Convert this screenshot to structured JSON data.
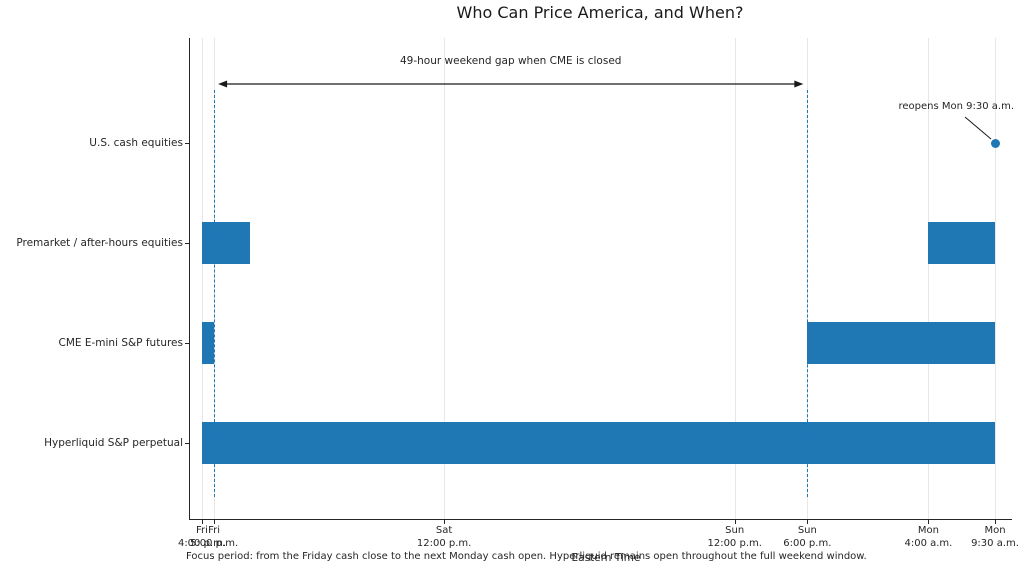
{
  "chart_data": {
    "type": "bar",
    "variant": "horizontal-interval-timeline",
    "title": "Who Can Price America, and When?",
    "xlabel": "Eastern Time",
    "caption": "Focus period: from the Friday cash close to the next Monday cash open. Hyperliquid remains open throughout the full weekend window.",
    "x_unit": "hours from Friday 4:00 p.m. ET",
    "x_range_hours": [
      0,
      65.5
    ],
    "grid": true,
    "x_ticks": [
      {
        "t": 0,
        "day": "Fri",
        "time": "4:00 p.m."
      },
      {
        "t": 1,
        "day": "Fri",
        "time": "5:00 p.m."
      },
      {
        "t": 20,
        "day": "Sat",
        "time": "12:00 p.m."
      },
      {
        "t": 44,
        "day": "Sun",
        "time": "12:00 p.m."
      },
      {
        "t": 50,
        "day": "Sun",
        "time": "6:00 p.m."
      },
      {
        "t": 60,
        "day": "Mon",
        "time": "4:00 a.m."
      },
      {
        "t": 65.5,
        "day": "Mon",
        "time": "9:30 a.m."
      }
    ],
    "rows": [
      {
        "label": "U.S. cash equities",
        "open_intervals_hours": [],
        "marker": {
          "t": 65.5,
          "annotation": "reopens Mon 9:30 a.m."
        }
      },
      {
        "label": "Premarket / after-hours equities",
        "open_intervals_hours": [
          [
            0,
            4
          ],
          [
            60,
            65.5
          ]
        ]
      },
      {
        "label": "CME E-mini S&P futures",
        "open_intervals_hours": [
          [
            0,
            1
          ],
          [
            50,
            65.5
          ]
        ]
      },
      {
        "label": "Hyperliquid S&P perpetual",
        "open_intervals_hours": [
          [
            0,
            65.5
          ]
        ]
      }
    ],
    "dashed_vlines_t": [
      1,
      50
    ],
    "gap_annotation": {
      "text": "49-hour weekend gap when CME is closed",
      "from_t": 1,
      "to_t": 50
    },
    "colors": {
      "bar": "#1f77b4",
      "marker": "#1f77b4",
      "dashed_line": "#1f77b4",
      "grid": "#e7e7e7",
      "spine": "#262626",
      "text": "#262626",
      "arrow": "#1a1a1a"
    }
  }
}
